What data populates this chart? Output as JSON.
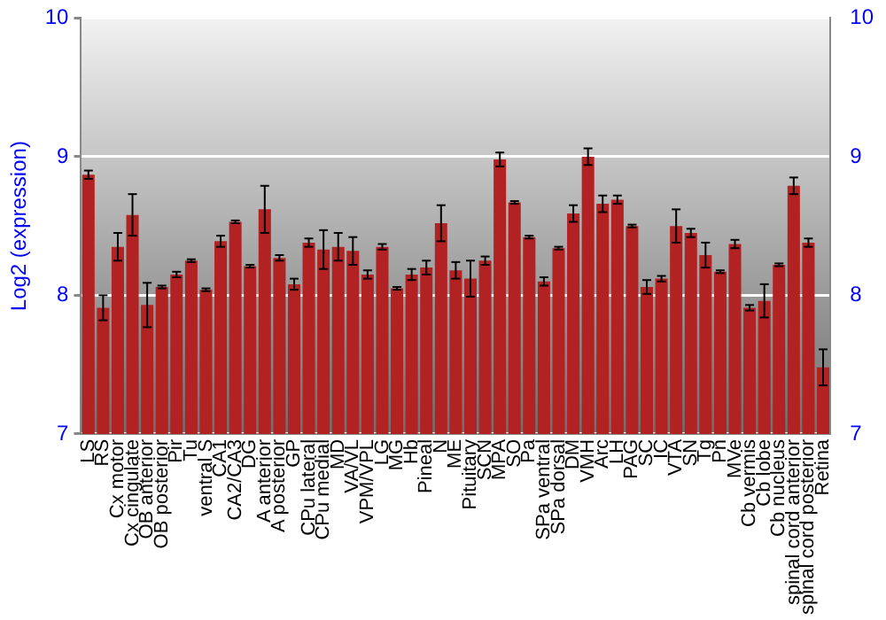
{
  "chart_data": {
    "type": "bar",
    "ylabel": "Log2 (expression)",
    "categories": [
      "LS",
      "RS",
      "Cx motor",
      "Cx cingulate",
      "OB anterior",
      "OB posterior",
      "Pir",
      "Tu",
      "ventral S",
      "CA1",
      "CA2/CA3",
      "DG",
      "A anterior",
      "A posterior",
      "GP",
      "CPu lateral",
      "CPu medial",
      "MD",
      "VA/VL",
      "VPM/VPL",
      "LG",
      "MG",
      "Hb",
      "Pineal",
      "N",
      "ME",
      "Pituitary",
      "SCN",
      "MPA",
      "SO",
      "Pa",
      "SPa ventral",
      "SPa dorsal",
      "DM",
      "VMH",
      "Arc",
      "LH",
      "PAG",
      "SC",
      "IC",
      "VTA",
      "SN",
      "Tg",
      "Pn",
      "MVe",
      "Cb vermis",
      "Cb lobe",
      "Cb nucleus",
      "spinal cord anterior",
      "spinal cord posterior",
      "Retina"
    ],
    "values": [
      8.87,
      7.91,
      8.35,
      8.58,
      7.93,
      8.06,
      8.15,
      8.25,
      8.04,
      8.39,
      8.53,
      8.21,
      8.62,
      8.27,
      8.08,
      8.38,
      8.33,
      8.35,
      8.32,
      8.15,
      8.35,
      8.05,
      8.15,
      8.2,
      8.52,
      8.18,
      8.12,
      8.25,
      8.98,
      8.67,
      8.42,
      8.1,
      8.34,
      8.59,
      9.0,
      8.66,
      8.69,
      8.5,
      8.06,
      8.12,
      8.5,
      8.45,
      8.29,
      8.17,
      8.37,
      7.91,
      7.96,
      8.22,
      8.79,
      8.38,
      7.48
    ],
    "errors": [
      0.03,
      0.09,
      0.1,
      0.15,
      0.16,
      0.01,
      0.02,
      0.01,
      0.01,
      0.04,
      0.01,
      0.01,
      0.17,
      0.02,
      0.04,
      0.03,
      0.14,
      0.1,
      0.1,
      0.03,
      0.02,
      0.01,
      0.04,
      0.05,
      0.13,
      0.06,
      0.13,
      0.03,
      0.05,
      0.01,
      0.01,
      0.03,
      0.01,
      0.06,
      0.06,
      0.06,
      0.03,
      0.01,
      0.05,
      0.02,
      0.12,
      0.03,
      0.09,
      0.01,
      0.03,
      0.02,
      0.12,
      0.01,
      0.06,
      0.03,
      0.13
    ],
    "color": "#b22222",
    "ylim": [
      7,
      10
    ],
    "yticks": [
      7,
      8,
      9,
      10
    ],
    "y2lim": [
      7,
      10
    ],
    "y2ticks": [
      7,
      8,
      9,
      10
    ],
    "grid": "y",
    "legend": false
  }
}
